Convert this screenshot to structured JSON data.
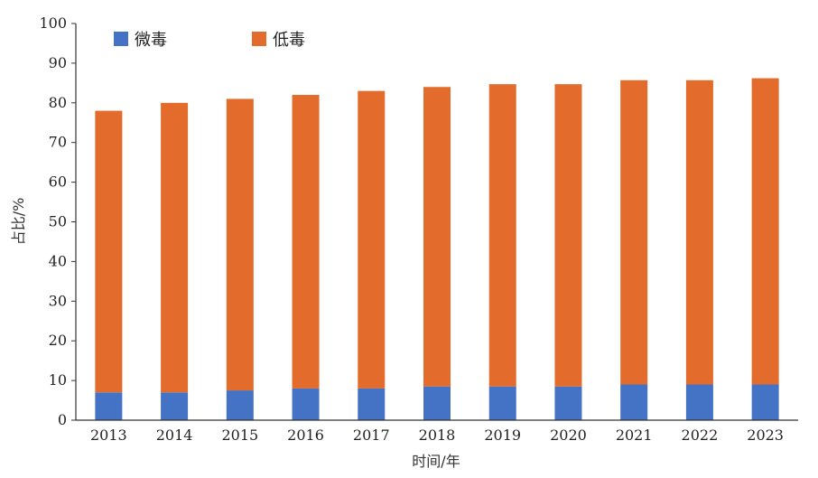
{
  "chart_data": {
    "type": "bar",
    "stacked": true,
    "categories": [
      "2013",
      "2014",
      "2015",
      "2016",
      "2017",
      "2018",
      "2019",
      "2020",
      "2021",
      "2022",
      "2023"
    ],
    "series": [
      {
        "name": "微毒",
        "color": "#4472c4",
        "values": [
          7,
          7,
          7.5,
          8,
          8,
          8.5,
          8.5,
          8.5,
          9,
          9,
          9
        ]
      },
      {
        "name": "低毒",
        "color": "#e36c2d",
        "values": [
          71,
          73,
          73.5,
          74,
          75,
          75.5,
          76.2,
          76.2,
          76.7,
          76.7,
          77.2
        ]
      }
    ],
    "xlabel": "时间/年",
    "ylabel": "占比/%",
    "ylim": [
      0,
      100
    ],
    "yticks": [
      0,
      10,
      20,
      30,
      40,
      50,
      60,
      70,
      80,
      90,
      100
    ],
    "grid": false,
    "legend_position": "top-left"
  }
}
